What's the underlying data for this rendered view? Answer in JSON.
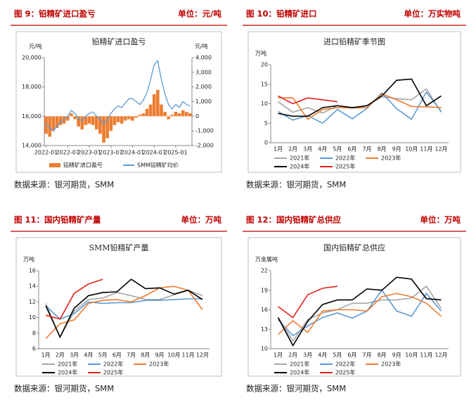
{
  "chart_data": [
    {
      "type": "combo",
      "figure_label": "图 9：铅精矿进口盈亏",
      "unit": "单位：元/吨",
      "title": "铅精矿进口盈亏",
      "source": "数据来源：银河期货，SMM",
      "y_unit": "元/吨",
      "y2_unit": "元/吨",
      "x": [
        "2022-01",
        "2022-02",
        "2022-03",
        "2022-04",
        "2022-05",
        "2022-06",
        "2022-07",
        "2022-08",
        "2022-09",
        "2022-10",
        "2022-11",
        "2022-12",
        "2023-01",
        "2023-02",
        "2023-03",
        "2023-04",
        "2023-05",
        "2023-06",
        "2023-07",
        "2023-08",
        "2023-09",
        "2023-10",
        "2023-11",
        "2023-12",
        "2024-01",
        "2024-02",
        "2024-03",
        "2024-04",
        "2024-05",
        "2024-06",
        "2024-07",
        "2024-08",
        "2024-09",
        "2024-10",
        "2024-11",
        "2024-12",
        "2025-01",
        "2025-02",
        "2025-03",
        "2025-04",
        "2025-05"
      ],
      "xticks": [
        "2022-01",
        "2022-07",
        "2023-01",
        "2023-07",
        "2024-01",
        "2024-07",
        "2025-01"
      ],
      "ylim": [
        14000,
        20000
      ],
      "yticks": [
        {
          "value": 14000,
          "label": "14,000"
        },
        {
          "value": 16000,
          "label": "16,000"
        },
        {
          "value": 18000,
          "label": "18,000"
        },
        {
          "value": 20000,
          "label": "20,000"
        }
      ],
      "y2lim": [
        -2000,
        4000
      ],
      "y2ticks": [
        {
          "value": -2000,
          "label": "-2,000"
        },
        {
          "value": -1000,
          "label": "-1,000"
        },
        0,
        {
          "value": 1000,
          "label": "1,000"
        },
        {
          "value": 2000,
          "label": "2,000"
        },
        {
          "value": 3000,
          "label": "3,000"
        },
        {
          "value": 4000,
          "label": "4,000"
        }
      ],
      "negative_tick_color": "#c00000",
      "series": [
        {
          "name": "铅精矿进口盈亏",
          "kind": "bar",
          "axis": "y2",
          "color": "#ed7d31",
          "values": [
            -1200,
            -1400,
            -1000,
            -800,
            -600,
            -500,
            -300,
            200,
            -200,
            -700,
            -900,
            -600,
            -500,
            -600,
            -900,
            -1200,
            -1800,
            -1500,
            -1000,
            -600,
            -400,
            -500,
            -300,
            -200,
            -300,
            -100,
            100,
            200,
            500,
            800,
            1500,
            1800,
            800,
            300,
            -200,
            100,
            300,
            200,
            400,
            300,
            200
          ]
        },
        {
          "name": "SMM铅精矿均价",
          "kind": "line",
          "color": "#5b9bd5",
          "values": [
            15500,
            15200,
            15000,
            15300,
            15600,
            15800,
            16000,
            16400,
            16200,
            15800,
            15700,
            16000,
            16200,
            16300,
            16000,
            15800,
            15500,
            15700,
            16200,
            16500,
            16700,
            16600,
            16900,
            17200,
            17200,
            17000,
            16800,
            17100,
            17600,
            18500,
            19500,
            19800,
            18500,
            17500,
            16800,
            16500,
            16800,
            16600,
            17000,
            16800,
            16700
          ]
        }
      ]
    },
    {
      "type": "line",
      "figure_label": "图 10：铅精矿进口",
      "unit": "单位：万实物吨",
      "title": "进口铅精矿季节图",
      "source": "数据来源：银河期货，SMM",
      "y_unit": "万吨",
      "categories": [
        "1月",
        "2月",
        "3月",
        "4月",
        "5月",
        "6月",
        "7月",
        "8月",
        "9月",
        "10月",
        "11月",
        "12月"
      ],
      "ylim": [
        0,
        20
      ],
      "yticks": [
        0,
        5,
        10,
        15,
        20
      ],
      "series": [
        {
          "name": "2021年",
          "color": "#a5a5a5",
          "values": [
            10.5,
            7.8,
            9,
            7.6,
            9.5,
            9,
            9.5,
            11.8,
            11.3,
            11,
            13.8,
            7.8
          ]
        },
        {
          "name": "2022年",
          "color": "#5b9bd5",
          "values": [
            8,
            5.8,
            7,
            5,
            8.5,
            6.1,
            8.8,
            12.8,
            8.7,
            6,
            13,
            8
          ]
        },
        {
          "name": "2023年",
          "color": "#ed7d31",
          "values": [
            11.5,
            11.5,
            6,
            8.5,
            9,
            8.9,
            9,
            12.5,
            11,
            9.3,
            9.2,
            9
          ]
        },
        {
          "name": "2024年",
          "color": "#000000",
          "values": [
            7.5,
            6.8,
            6.8,
            9,
            9.5,
            9,
            9.5,
            12,
            16,
            16.3,
            9.5,
            12
          ]
        },
        {
          "name": "2025年",
          "color": "#e32119",
          "values": [
            12,
            10,
            11.5,
            11,
            10.5,
            null,
            null,
            null,
            null,
            null,
            null,
            null
          ]
        }
      ]
    },
    {
      "type": "line",
      "figure_label": "图 11：国内铅精矿产量",
      "unit": "单位：万吨",
      "title": "SMM铅精矿产量",
      "source": "数据来源：银河期货，SMM",
      "y_unit": "万吨",
      "categories": [
        "1月",
        "2月",
        "3月",
        "4月",
        "5月",
        "6月",
        "7月",
        "8月",
        "9月",
        "10月",
        "11月",
        "12月"
      ],
      "ylim": [
        6,
        16
      ],
      "yticks": [
        6,
        8,
        10,
        12,
        14,
        16
      ],
      "series": [
        {
          "name": "2021年",
          "color": "#a5a5a5",
          "values": [
            11.8,
            7.5,
            10.8,
            12.3,
            12.5,
            13.2,
            12.8,
            12.3,
            12.3,
            12.9,
            13.5,
            12.8
          ]
        },
        {
          "name": "2022年",
          "color": "#5b9bd5",
          "values": [
            11.5,
            9.8,
            10.5,
            12,
            11.8,
            11.9,
            11.9,
            12.2,
            12.2,
            12.3,
            12.4,
            12.4
          ]
        },
        {
          "name": "2023年",
          "color": "#ed7d31",
          "values": [
            7.3,
            9.2,
            9.7,
            11.8,
            12.2,
            12.3,
            12,
            12.8,
            13.8,
            14,
            13.5,
            11
          ]
        },
        {
          "name": "2024年",
          "color": "#000000",
          "values": [
            11.5,
            7.5,
            11.2,
            12.8,
            13.2,
            13.3,
            14.9,
            13.7,
            13.8,
            13,
            13.5,
            12.3
          ]
        },
        {
          "name": "2025年",
          "color": "#e32119",
          "values": [
            10.3,
            9.8,
            13.1,
            14.3,
            14.9,
            null,
            null,
            null,
            null,
            null,
            null,
            null
          ]
        }
      ]
    },
    {
      "type": "line",
      "figure_label": "图 12：国内铅精矿总供应",
      "unit": "单位：万吨",
      "title": "国内铅精矿总供应",
      "source": "数据来源：银河期货，SMM",
      "y_unit": "万金属吨",
      "categories": [
        "1月",
        "2月",
        "3月",
        "4月",
        "5月",
        "6月",
        "7月",
        "8月",
        "9月",
        "10月",
        "11月",
        "12月"
      ],
      "ylim": [
        10,
        22
      ],
      "yticks": [
        10,
        13,
        16,
        19,
        22
      ],
      "series": [
        {
          "name": "2021年",
          "color": "#a5a5a5",
          "values": [
            14.8,
            11.2,
            14.5,
            15.5,
            16,
            17,
            17,
            17.5,
            17.5,
            17.8,
            19.6,
            16.2
          ]
        },
        {
          "name": "2022年",
          "color": "#5b9bd5",
          "values": [
            14.5,
            12,
            13.5,
            14.8,
            15.5,
            14.7,
            15.8,
            19,
            15.8,
            15,
            18.5,
            15.8
          ]
        },
        {
          "name": "2023年",
          "color": "#ed7d31",
          "values": [
            12.2,
            14.3,
            12.5,
            15.8,
            16,
            16,
            15.8,
            18,
            18.5,
            18,
            17,
            15
          ]
        },
        {
          "name": "2024年",
          "color": "#000000",
          "values": [
            14.8,
            10.5,
            14.2,
            16.8,
            17.5,
            17.5,
            19.2,
            19,
            21,
            20.7,
            17.7,
            17.5
          ]
        },
        {
          "name": "2025年",
          "color": "#e32119",
          "values": [
            16.5,
            14.8,
            18.3,
            19.3,
            19.6,
            null,
            null,
            null,
            null,
            null,
            null,
            null
          ]
        }
      ]
    }
  ]
}
